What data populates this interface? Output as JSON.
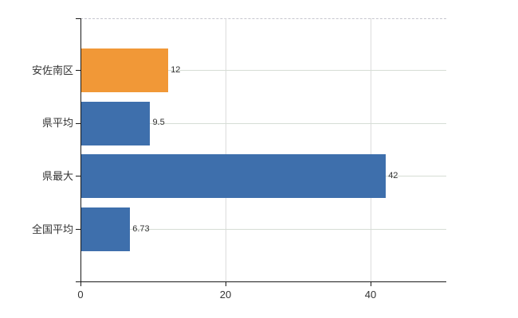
{
  "chart_data": {
    "type": "bar",
    "orientation": "horizontal",
    "title": "",
    "xlabel": "",
    "ylabel": "",
    "categories": [
      "安佐南区",
      "県平均",
      "県最大",
      "全国平均"
    ],
    "values": [
      12,
      9.5,
      42,
      6.73
    ],
    "value_labels": [
      "12",
      "9.5",
      "42",
      "6.73"
    ],
    "bar_colors": [
      "#F19837",
      "#3E6FAC",
      "#3E6FAC",
      "#3E6FAC"
    ],
    "xlim": [
      0,
      50.5
    ],
    "x_ticks": [
      0,
      20,
      40
    ],
    "x_tick_labels": [
      "0",
      "20",
      "40"
    ],
    "grid": true,
    "legend": false
  },
  "colors": {
    "bar_orange": "#F19837",
    "bar_blue": "#3E6FAC",
    "axis": "#1a1a1a",
    "grid_horizontal": "#d6ddd5",
    "grid_vertical": "#dcdcdc",
    "grid_top_dashed": "#c6c6ce",
    "text": "#333333",
    "background": "#ffffff"
  }
}
